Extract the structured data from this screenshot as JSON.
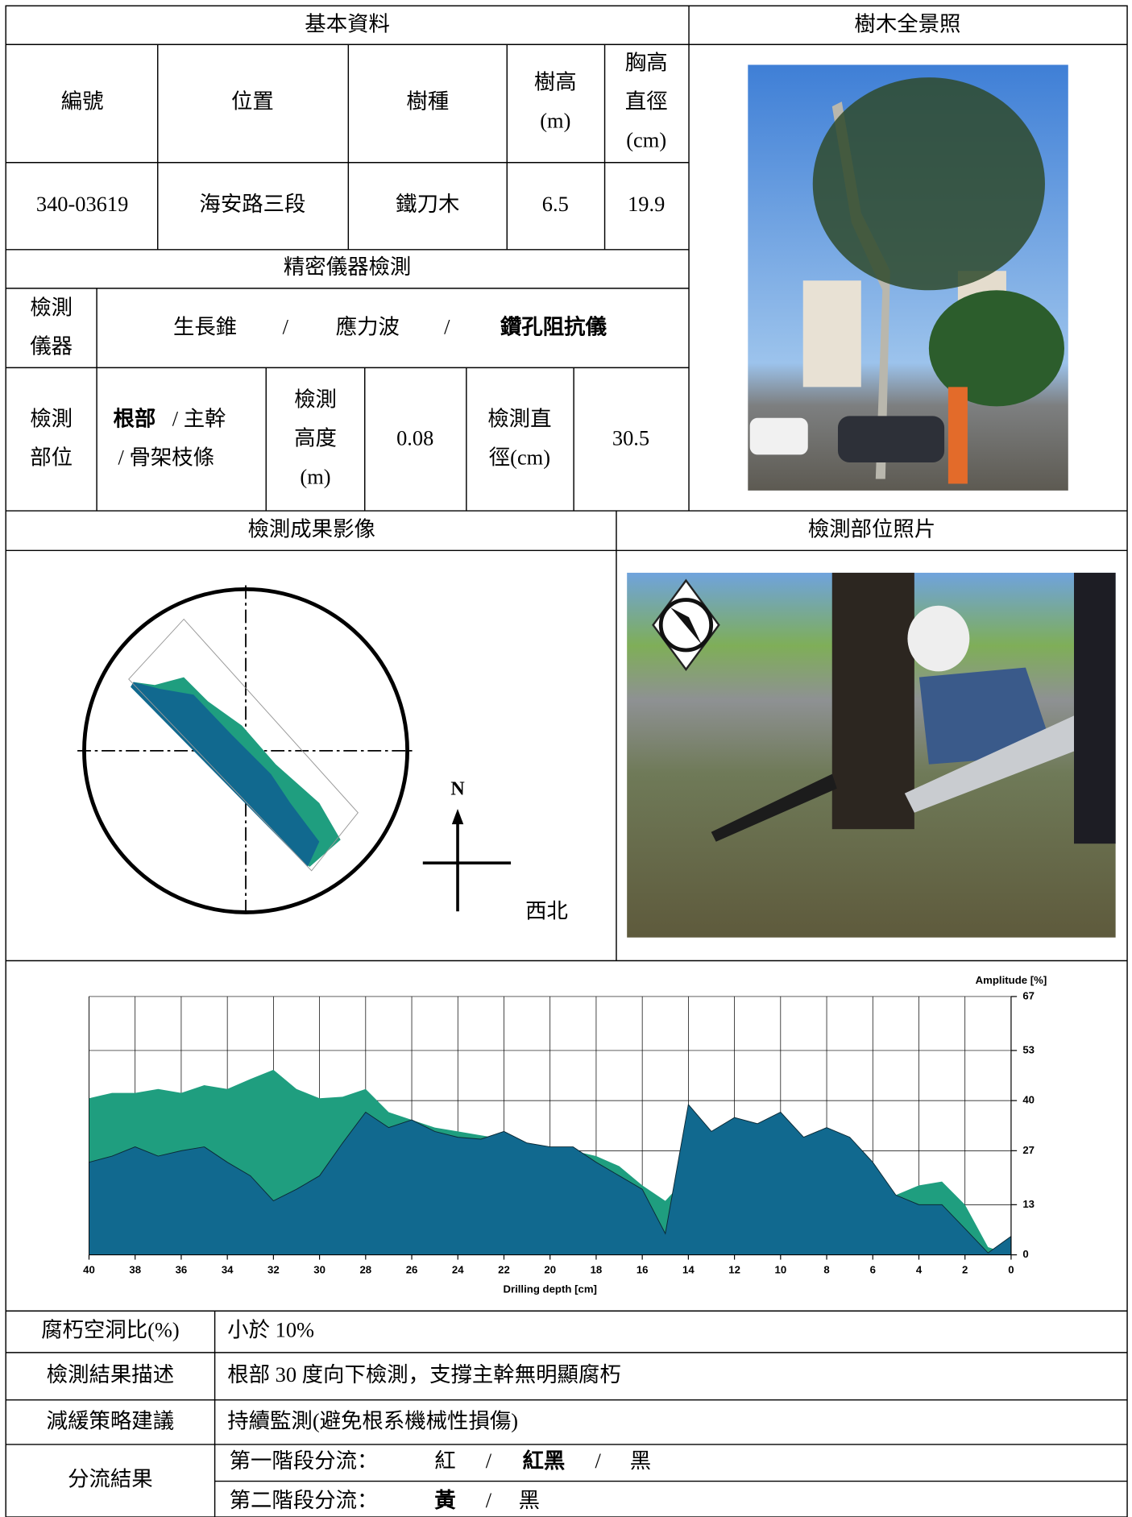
{
  "header": {
    "basic_info": "基本資料",
    "tree_photo": "樹木全景照"
  },
  "basic": {
    "columns": [
      [
        "編號"
      ],
      [
        "位置"
      ],
      [
        "樹種"
      ],
      [
        "樹高",
        "(m)"
      ],
      [
        "胸高",
        "直徑",
        "(cm)"
      ]
    ],
    "values": [
      "340-03619",
      "海安路三段",
      "鐵刀木",
      6.5,
      19.9
    ]
  },
  "precision": {
    "title": "精密儀器檢測",
    "instrument_label": [
      "檢測",
      "儀器"
    ],
    "instruments": [
      "生長錐",
      "/",
      "應力波",
      "/",
      "鑽孔阻抗儀"
    ],
    "instrument_bold_index": 4,
    "part_label": [
      "檢測",
      "部位"
    ],
    "parts": [
      "根部",
      "/ 主幹",
      "/ 骨架枝條"
    ],
    "part_bold_index": 0,
    "height_label": [
      "檢測",
      "高度",
      "(m)"
    ],
    "height": 0.08,
    "diameter_label": [
      "檢測直",
      "徑(cm)"
    ],
    "diameter": 30.5
  },
  "results": {
    "image_title": "檢測成果影像",
    "photo_title": "檢測部位照片",
    "north": "N",
    "direction": "西北"
  },
  "chart_data": {
    "type": "area",
    "xlabel": "Drilling depth [cm]",
    "ylabel": "Amplitude [%]",
    "x": [
      40,
      39,
      38,
      37,
      36,
      35,
      34,
      33,
      32,
      31,
      30,
      29,
      28,
      27,
      26,
      25,
      24,
      23,
      22,
      21,
      20,
      19,
      18,
      17,
      16,
      15,
      14,
      13,
      12,
      11,
      10,
      9,
      8,
      7,
      6,
      5,
      4,
      3,
      2,
      1,
      0
    ],
    "series": [
      {
        "color": "#1f9e7f",
        "values": [
          40.6,
          42,
          42,
          43,
          42,
          44,
          43,
          45.6,
          48,
          43,
          40.6,
          41,
          43,
          37,
          35,
          33,
          32,
          31,
          30,
          29,
          28,
          27,
          25.6,
          23,
          18,
          14,
          20.5,
          22,
          21,
          20,
          19,
          18,
          19,
          20.5,
          22,
          15.5,
          18,
          19,
          13,
          2,
          0
        ]
      },
      {
        "color": "#11698f",
        "values": [
          24,
          25.6,
          28,
          25.6,
          27,
          28,
          24,
          20.5,
          14,
          17,
          20.5,
          29,
          37,
          33,
          35,
          32,
          30.5,
          30,
          32,
          29,
          28,
          28,
          24,
          20.5,
          17,
          5.5,
          39,
          32,
          35.6,
          34,
          37,
          30.5,
          33,
          30.5,
          24,
          15.5,
          13,
          13,
          6.8,
          0.5,
          4.8
        ]
      }
    ],
    "xlim": [
      40,
      0
    ],
    "xticks": [
      40,
      38,
      36,
      34,
      32,
      30,
      28,
      26,
      24,
      22,
      20,
      18,
      16,
      14,
      12,
      10,
      8,
      6,
      4,
      2,
      0
    ],
    "ylim": [
      0,
      67
    ],
    "yticks": [
      0,
      13,
      27,
      40,
      53,
      67
    ],
    "grid": true
  },
  "summary": {
    "rows": [
      {
        "label": "腐朽空洞比(%)",
        "text": "小於 10%"
      },
      {
        "label": "檢測結果描述",
        "text": "根部 30 度向下檢測，支撐主幹無明顯腐朽"
      },
      {
        "label": "減緩策略建議",
        "text": "持續監測(避免根系機械性損傷)"
      }
    ],
    "classification": {
      "label": "分流結果",
      "stages": [
        {
          "label": "第一階段分流：",
          "options": [
            "紅",
            "/",
            "紅黑",
            "/",
            "黑"
          ],
          "bold_index": 2
        },
        {
          "label": "第二階段分流：",
          "options": [
            "黃",
            "/",
            "黑"
          ],
          "bold_index": 0
        }
      ]
    }
  }
}
